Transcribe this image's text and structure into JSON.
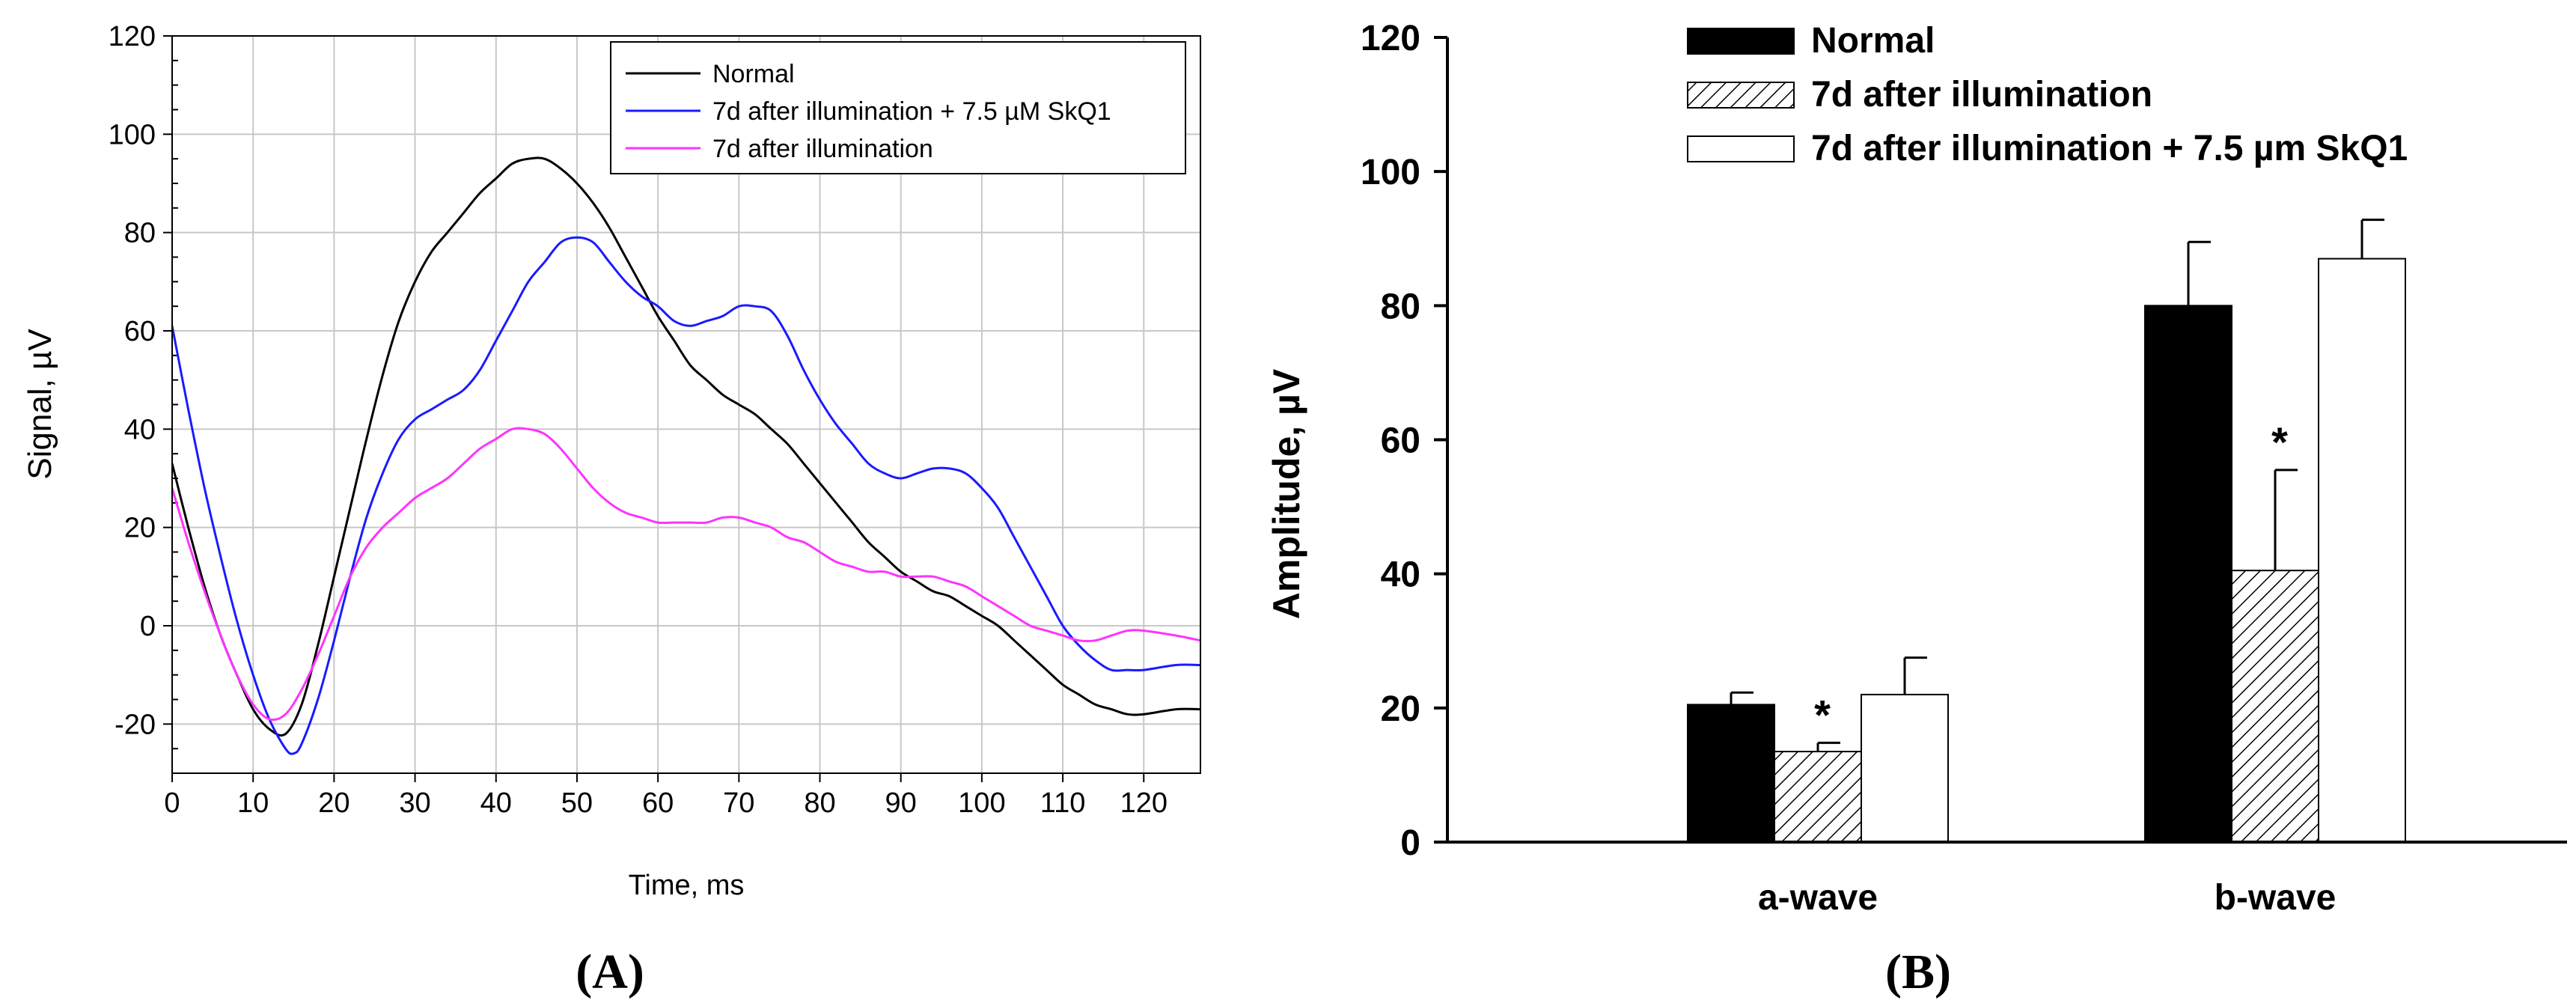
{
  "colors": {
    "normal": "#000000",
    "skq1": "#1a1aff",
    "illum": "#ff33ff",
    "grid": "#c8c8c8",
    "bar_normal": "#000000",
    "bar_skq1": "#ffffff",
    "axis": "#000000"
  },
  "chart_data": [
    {
      "id": "panel-a",
      "type": "line",
      "panel_label": "(A)",
      "xlabel": "Time, ms",
      "ylabel": "Signal, µV",
      "xlim": [
        0,
        127
      ],
      "ylim": [
        -30,
        120
      ],
      "xticks": [
        0,
        10,
        20,
        30,
        40,
        50,
        60,
        70,
        80,
        90,
        100,
        110,
        120
      ],
      "yticks": [
        -20,
        0,
        20,
        40,
        60,
        80,
        100,
        120
      ],
      "grid": true,
      "legend_position": "top-right",
      "series": [
        {
          "name": "Normal",
          "color_key": "normal",
          "points": [
            [
              0,
              33
            ],
            [
              2,
              20
            ],
            [
              4,
              8
            ],
            [
              6,
              -2
            ],
            [
              8,
              -10
            ],
            [
              10,
              -17
            ],
            [
              12,
              -21
            ],
            [
              14,
              -22
            ],
            [
              16,
              -16
            ],
            [
              18,
              -4
            ],
            [
              20,
              10
            ],
            [
              22,
              24
            ],
            [
              24,
              38
            ],
            [
              26,
              51
            ],
            [
              28,
              62
            ],
            [
              30,
              70
            ],
            [
              32,
              76
            ],
            [
              34,
              80
            ],
            [
              36,
              84
            ],
            [
              38,
              88
            ],
            [
              40,
              91
            ],
            [
              42,
              94
            ],
            [
              44,
              95
            ],
            [
              46,
              95
            ],
            [
              48,
              93
            ],
            [
              50,
              90
            ],
            [
              52,
              86
            ],
            [
              54,
              81
            ],
            [
              56,
              75
            ],
            [
              58,
              69
            ],
            [
              60,
              63
            ],
            [
              62,
              58
            ],
            [
              64,
              53
            ],
            [
              66,
              50
            ],
            [
              68,
              47
            ],
            [
              70,
              45
            ],
            [
              72,
              43
            ],
            [
              74,
              40
            ],
            [
              76,
              37
            ],
            [
              78,
              33
            ],
            [
              80,
              29
            ],
            [
              82,
              25
            ],
            [
              84,
              21
            ],
            [
              86,
              17
            ],
            [
              88,
              14
            ],
            [
              90,
              11
            ],
            [
              92,
              9
            ],
            [
              94,
              7
            ],
            [
              96,
              6
            ],
            [
              98,
              4
            ],
            [
              100,
              2
            ],
            [
              102,
              0
            ],
            [
              104,
              -3
            ],
            [
              106,
              -6
            ],
            [
              108,
              -9
            ],
            [
              110,
              -12
            ],
            [
              112,
              -14
            ],
            [
              114,
              -16
            ],
            [
              116,
              -17
            ],
            [
              118,
              -18
            ],
            [
              120,
              -18
            ],
            [
              124,
              -17
            ],
            [
              127,
              -17
            ]
          ]
        },
        {
          "name": "7d after illumination + 7.5 µM SkQ1",
          "color_key": "skq1",
          "points": [
            [
              0,
              61
            ],
            [
              2,
              44
            ],
            [
              4,
              28
            ],
            [
              6,
              14
            ],
            [
              8,
              1
            ],
            [
              10,
              -10
            ],
            [
              12,
              -19
            ],
            [
              14,
              -25
            ],
            [
              15,
              -26
            ],
            [
              16,
              -24
            ],
            [
              18,
              -15
            ],
            [
              20,
              -3
            ],
            [
              22,
              10
            ],
            [
              24,
              22
            ],
            [
              26,
              31
            ],
            [
              28,
              38
            ],
            [
              30,
              42
            ],
            [
              32,
              44
            ],
            [
              34,
              46
            ],
            [
              36,
              48
            ],
            [
              38,
              52
            ],
            [
              40,
              58
            ],
            [
              42,
              64
            ],
            [
              44,
              70
            ],
            [
              46,
              74
            ],
            [
              48,
              78
            ],
            [
              50,
              79
            ],
            [
              52,
              78
            ],
            [
              54,
              74
            ],
            [
              56,
              70
            ],
            [
              58,
              67
            ],
            [
              60,
              65
            ],
            [
              62,
              62
            ],
            [
              64,
              61
            ],
            [
              66,
              62
            ],
            [
              68,
              63
            ],
            [
              70,
              65
            ],
            [
              72,
              65
            ],
            [
              74,
              64
            ],
            [
              76,
              59
            ],
            [
              78,
              52
            ],
            [
              80,
              46
            ],
            [
              82,
              41
            ],
            [
              84,
              37
            ],
            [
              86,
              33
            ],
            [
              88,
              31
            ],
            [
              90,
              30
            ],
            [
              92,
              31
            ],
            [
              94,
              32
            ],
            [
              96,
              32
            ],
            [
              98,
              31
            ],
            [
              100,
              28
            ],
            [
              102,
              24
            ],
            [
              104,
              18
            ],
            [
              106,
              12
            ],
            [
              108,
              6
            ],
            [
              110,
              0
            ],
            [
              112,
              -4
            ],
            [
              114,
              -7
            ],
            [
              116,
              -9
            ],
            [
              118,
              -9
            ],
            [
              120,
              -9
            ],
            [
              124,
              -8
            ],
            [
              127,
              -8
            ]
          ]
        },
        {
          "name": "7d after illumination",
          "color_key": "illum",
          "points": [
            [
              0,
              28
            ],
            [
              2,
              17
            ],
            [
              4,
              7
            ],
            [
              6,
              -2
            ],
            [
              8,
              -10
            ],
            [
              10,
              -16
            ],
            [
              12,
              -19
            ],
            [
              14,
              -18
            ],
            [
              16,
              -13
            ],
            [
              18,
              -6
            ],
            [
              20,
              2
            ],
            [
              22,
              10
            ],
            [
              24,
              16
            ],
            [
              26,
              20
            ],
            [
              28,
              23
            ],
            [
              30,
              26
            ],
            [
              32,
              28
            ],
            [
              34,
              30
            ],
            [
              36,
              33
            ],
            [
              38,
              36
            ],
            [
              40,
              38
            ],
            [
              42,
              40
            ],
            [
              44,
              40
            ],
            [
              46,
              39
            ],
            [
              48,
              36
            ],
            [
              50,
              32
            ],
            [
              52,
              28
            ],
            [
              54,
              25
            ],
            [
              56,
              23
            ],
            [
              58,
              22
            ],
            [
              60,
              21
            ],
            [
              62,
              21
            ],
            [
              64,
              21
            ],
            [
              66,
              21
            ],
            [
              68,
              22
            ],
            [
              70,
              22
            ],
            [
              72,
              21
            ],
            [
              74,
              20
            ],
            [
              76,
              18
            ],
            [
              78,
              17
            ],
            [
              80,
              15
            ],
            [
              82,
              13
            ],
            [
              84,
              12
            ],
            [
              86,
              11
            ],
            [
              88,
              11
            ],
            [
              90,
              10
            ],
            [
              92,
              10
            ],
            [
              94,
              10
            ],
            [
              96,
              9
            ],
            [
              98,
              8
            ],
            [
              100,
              6
            ],
            [
              102,
              4
            ],
            [
              104,
              2
            ],
            [
              106,
              0
            ],
            [
              108,
              -1
            ],
            [
              110,
              -2
            ],
            [
              112,
              -3
            ],
            [
              114,
              -3
            ],
            [
              116,
              -2
            ],
            [
              118,
              -1
            ],
            [
              120,
              -1
            ],
            [
              124,
              -2
            ],
            [
              127,
              -3
            ]
          ]
        }
      ]
    },
    {
      "id": "panel-b",
      "type": "bar",
      "panel_label": "(B)",
      "xlabel": "",
      "ylabel": "Amplitude, µV",
      "ylim": [
        0,
        120
      ],
      "yticks": [
        0,
        20,
        40,
        60,
        80,
        100,
        120
      ],
      "grid": false,
      "legend_position": "top-left",
      "categories": [
        "a-wave",
        "b-wave"
      ],
      "series": [
        {
          "name": "Normal",
          "fill": "solid",
          "values": [
            20.5,
            80
          ],
          "errors": [
            1.8,
            9.5
          ],
          "significant": [
            false,
            false
          ]
        },
        {
          "name": "7d after illumination",
          "fill": "hatch",
          "values": [
            13.5,
            40.5
          ],
          "errors": [
            1.3,
            15
          ],
          "significant": [
            true,
            true
          ]
        },
        {
          "name": "7d after illumination + 7.5 µm SkQ1",
          "fill": "white",
          "values": [
            22,
            87
          ],
          "errors": [
            5.5,
            5.8
          ],
          "significant": [
            false,
            false
          ]
        }
      ],
      "significance_marker": "*"
    }
  ]
}
